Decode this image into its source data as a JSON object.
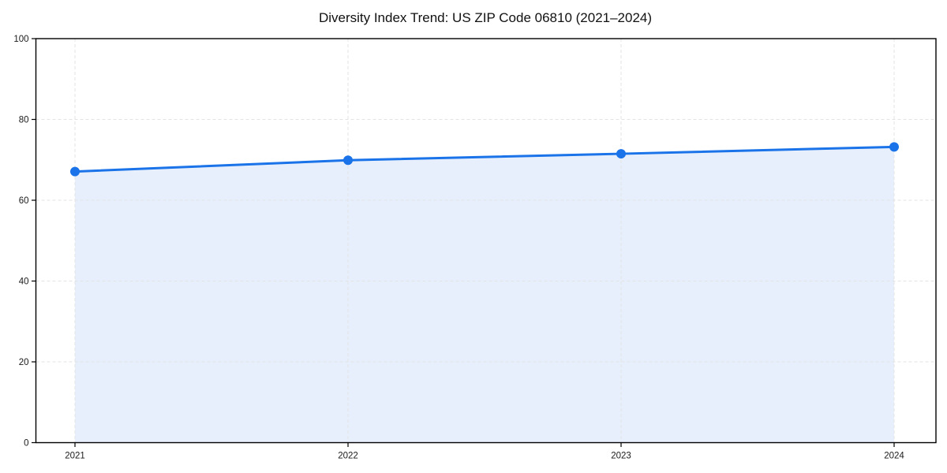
{
  "chart_data": {
    "type": "area",
    "title": "Diversity Index Trend: US ZIP Code 06810 (2021–2024)",
    "x": [
      "2021",
      "2022",
      "2023",
      "2024"
    ],
    "series": [
      {
        "name": "Diversity Index",
        "values": [
          67.1,
          69.9,
          71.5,
          73.2
        ]
      }
    ],
    "xlabel": "",
    "ylabel": "",
    "ylim": [
      0,
      100
    ],
    "yticks": [
      0,
      20,
      40,
      60,
      80,
      100
    ],
    "grid": true,
    "grid_style": "dashed",
    "legend": "none",
    "marker": "circle",
    "colors": {
      "line": "#1a73e8",
      "marker": "#1a73e8",
      "fill": "#e7effc",
      "grid": "#e3e3e3",
      "axis": "#000000",
      "tick_text": "#1a1a1a",
      "title_text": "#111111",
      "background": "#ffffff"
    }
  }
}
